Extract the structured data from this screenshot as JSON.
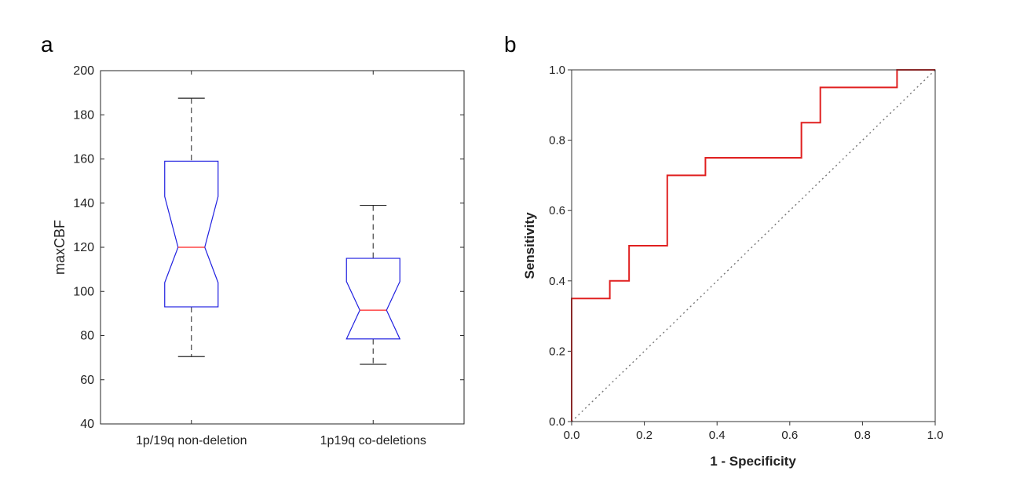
{
  "chart_data": [
    {
      "type": "boxplot",
      "panel_label": "a",
      "title": "",
      "xlabel": "",
      "ylabel": "maxCBF",
      "ylim": [
        40,
        200
      ],
      "yticks": [
        40,
        60,
        80,
        100,
        120,
        140,
        160,
        180,
        200
      ],
      "categories": [
        "1p/19q non-deletion",
        "1p19q co-deletions"
      ],
      "boxes": [
        {
          "name": "1p/19q non-deletion",
          "min": 70.5,
          "q1": 93,
          "median": 120,
          "q3": 159,
          "max": 187.5,
          "notch_low": 104,
          "notch_high": 143
        },
        {
          "name": "1p19q co-deletions",
          "min": 67,
          "q1": 78.5,
          "median": 91.5,
          "q3": 115,
          "max": 139,
          "notch_low": 78.5,
          "notch_high": 104.5
        }
      ],
      "colors": {
        "box": "#2020e0",
        "median": "#ff2020",
        "whisker": "#444444"
      }
    },
    {
      "type": "line",
      "panel_label": "b",
      "title": "",
      "xlabel": "1 - Specificity",
      "ylabel": "Sensitivity",
      "xlim": [
        0,
        1
      ],
      "ylim": [
        0,
        1
      ],
      "xticks": [
        "0.0",
        "0.2",
        "0.4",
        "0.6",
        "0.8",
        "1.0"
      ],
      "yticks": [
        "0.0",
        "0.2",
        "0.4",
        "0.6",
        "0.8",
        "1.0"
      ],
      "series": [
        {
          "name": "ROC curve",
          "color": "#e02020",
          "x": [
            0,
            0,
            0.105,
            0.105,
            0.158,
            0.158,
            0.263,
            0.263,
            0.368,
            0.368,
            0.632,
            0.632,
            0.684,
            0.684,
            0.895,
            0.895,
            1.0
          ],
          "y": [
            0,
            0.35,
            0.35,
            0.4,
            0.4,
            0.5,
            0.5,
            0.7,
            0.7,
            0.75,
            0.75,
            0.85,
            0.85,
            0.95,
            0.95,
            1.0,
            1.0
          ]
        },
        {
          "name": "Reference line",
          "color": "#777777",
          "style": "dotted",
          "x": [
            0,
            1
          ],
          "y": [
            0,
            1
          ]
        }
      ]
    }
  ]
}
